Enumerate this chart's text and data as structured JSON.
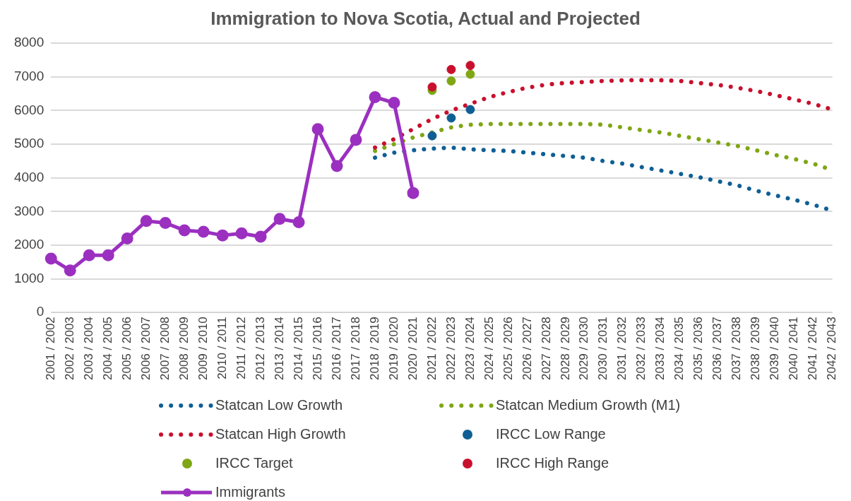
{
  "chart_data": {
    "type": "line",
    "title": "Immigration to Nova Scotia, Actual and Projected",
    "categories": [
      "2001 / 2002",
      "2002 / 2003",
      "2003 / 2004",
      "2004 / 2005",
      "2005 / 2006",
      "2006 / 2007",
      "2007 / 2008",
      "2008 / 2009",
      "2009 / 2010",
      "2010 / 2011",
      "2011 / 2012",
      "2012 / 2013",
      "2013 / 2014",
      "2014 / 2015",
      "2015 / 2016",
      "2016 / 2017",
      "2017 / 2018",
      "2018 / 2019",
      "2019 / 2020",
      "2020 / 2021",
      "2021 / 2022",
      "2022 / 2023",
      "2023 / 2024",
      "2024 / 2025",
      "2025 / 2026",
      "2026 / 2027",
      "2027 / 2028",
      "2028 / 2029",
      "2029 / 2030",
      "2030 / 2031",
      "2031 / 2032",
      "2032 / 2033",
      "2033 / 2034",
      "2034 / 2035",
      "2035 / 2036",
      "2036 / 2037",
      "2037 / 2038",
      "2038 / 2039",
      "2039 / 2040",
      "2040 / 2041",
      "2041 / 2042",
      "2042 / 2043"
    ],
    "series": [
      {
        "name": "Statcan Low Growth",
        "type": "line",
        "color": "#0f5f94",
        "line_style": "dotted",
        "marker": "none",
        "values": [
          null,
          null,
          null,
          null,
          null,
          null,
          null,
          null,
          null,
          null,
          null,
          null,
          null,
          null,
          null,
          null,
          null,
          4600,
          4750,
          4820,
          4870,
          4900,
          4850,
          4820,
          4800,
          4750,
          4700,
          4650,
          4600,
          4500,
          4420,
          4320,
          4220,
          4120,
          4020,
          3900,
          3780,
          3620,
          3480,
          3350,
          3200,
          3030
        ]
      },
      {
        "name": "Statcan Medium Growth (M1)",
        "type": "line",
        "color": "#7fa614",
        "line_style": "dotted",
        "marker": "none",
        "values": [
          null,
          null,
          null,
          null,
          null,
          null,
          null,
          null,
          null,
          null,
          null,
          null,
          null,
          null,
          null,
          null,
          null,
          4800,
          5000,
          5200,
          5350,
          5500,
          5580,
          5600,
          5600,
          5600,
          5600,
          5600,
          5600,
          5580,
          5500,
          5420,
          5350,
          5250,
          5150,
          5050,
          4950,
          4820,
          4680,
          4560,
          4420,
          4230
        ]
      },
      {
        "name": "Statcan High Growth",
        "type": "line",
        "color": "#c8102e",
        "line_style": "dotted",
        "marker": "none",
        "values": [
          null,
          null,
          null,
          null,
          null,
          null,
          null,
          null,
          null,
          null,
          null,
          null,
          null,
          null,
          null,
          null,
          null,
          4900,
          5150,
          5450,
          5750,
          6000,
          6200,
          6400,
          6550,
          6680,
          6770,
          6820,
          6850,
          6880,
          6900,
          6900,
          6900,
          6880,
          6820,
          6760,
          6680,
          6580,
          6460,
          6330,
          6200,
          6030
        ]
      },
      {
        "name": "IRCC Low Range",
        "type": "scatter",
        "color": "#0f5f94",
        "marker": "circle",
        "x": [
          "2021 / 2022",
          "2022 / 2023",
          "2023 / 2024"
        ],
        "values": [
          5250,
          5780,
          6030
        ]
      },
      {
        "name": "IRCC Target",
        "type": "scatter",
        "color": "#7fa614",
        "marker": "circle",
        "x": [
          "2021 / 2022",
          "2022 / 2023",
          "2023 / 2024"
        ],
        "values": [
          6600,
          6880,
          7080
        ]
      },
      {
        "name": "IRCC High Range",
        "type": "scatter",
        "color": "#c8102e",
        "marker": "circle",
        "x": [
          "2021 / 2022",
          "2022 / 2023",
          "2023 / 2024"
        ],
        "values": [
          6700,
          7220,
          7340
        ]
      },
      {
        "name": "Immigrants",
        "type": "line",
        "color": "#9b30c0",
        "line_style": "solid",
        "marker": "circle",
        "values": [
          1600,
          1250,
          1700,
          1700,
          2200,
          2720,
          2660,
          2440,
          2400,
          2290,
          2350,
          2250,
          2780,
          2680,
          5450,
          4350,
          5130,
          6400,
          6230,
          3550,
          null,
          null,
          null,
          null,
          null,
          null,
          null,
          null,
          null,
          null,
          null,
          null,
          null,
          null,
          null,
          null,
          null,
          null,
          null,
          null,
          null,
          null
        ]
      }
    ],
    "ylim": [
      0,
      8000
    ],
    "yticks": [
      0,
      1000,
      2000,
      3000,
      4000,
      5000,
      6000,
      7000,
      8000
    ],
    "grid": "y",
    "legend": "bottom"
  }
}
